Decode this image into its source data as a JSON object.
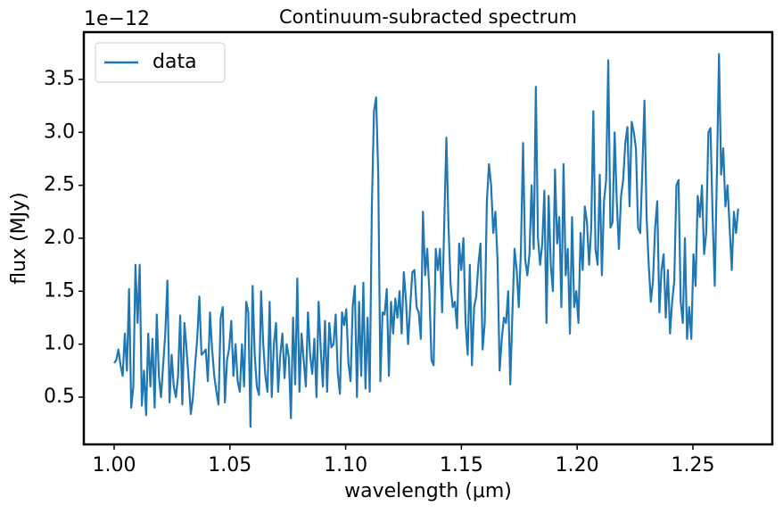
{
  "chart_data": {
    "type": "line",
    "title": "Continuum-subracted spectrum",
    "x_label": "wavelength (μm)",
    "y_label": "flux (MJy)",
    "y_offset_text": "1e−12",
    "legend_position": "upper left",
    "grid": false,
    "xlim": [
      0.9869,
      1.2843
    ],
    "ylim": [
      0.0534,
      3.9466
    ],
    "xticks": [
      {
        "value": 1,
        "label": "1.00"
      },
      1.05,
      {
        "value": 1.1,
        "label": "1.10"
      },
      1.15,
      {
        "value": 1.2,
        "label": "1.20"
      },
      1.25
    ],
    "yticks": [
      0.5,
      {
        "value": 1,
        "label": "1.0"
      },
      1.5,
      {
        "value": 2,
        "label": "2.0"
      },
      2.5,
      {
        "value": 3,
        "label": "3.0"
      },
      3.5
    ],
    "x": [
      1,
      1.00092,
      1.00184,
      1.00276,
      1.00368,
      1.0046,
      1.00552,
      1.00644,
      1.00736,
      1.00828,
      1.0092,
      1.01012,
      1.01104,
      1.01196,
      1.01288,
      1.0138,
      1.01472,
      1.01564,
      1.01656,
      1.01748,
      1.0184,
      1.01932,
      1.02024,
      1.02116,
      1.02208,
      1.023,
      1.02392,
      1.02484,
      1.02576,
      1.02668,
      1.0276,
      1.02852,
      1.02944,
      1.03036,
      1.03128,
      1.0322,
      1.03312,
      1.03404,
      1.03496,
      1.03588,
      1.0368,
      1.03772,
      1.03864,
      1.03956,
      1.04048,
      1.0414,
      1.04232,
      1.04324,
      1.04416,
      1.04508,
      1.046,
      1.04692,
      1.04784,
      1.04876,
      1.04968,
      1.0506,
      1.05152,
      1.05244,
      1.05336,
      1.05428,
      1.0552,
      1.05612,
      1.05704,
      1.05796,
      1.05888,
      1.0598,
      1.06072,
      1.06164,
      1.06256,
      1.06348,
      1.0644,
      1.06532,
      1.06624,
      1.06716,
      1.06808,
      1.069,
      1.06992,
      1.07084,
      1.07176,
      1.07268,
      1.0736,
      1.07452,
      1.07544,
      1.07636,
      1.07728,
      1.0782,
      1.07912,
      1.08004,
      1.08096,
      1.08188,
      1.0828,
      1.08372,
      1.08464,
      1.08556,
      1.08648,
      1.0874,
      1.08832,
      1.08924,
      1.09016,
      1.09108,
      1.092,
      1.09292,
      1.09384,
      1.09476,
      1.09568,
      1.0966,
      1.09752,
      1.09844,
      1.09936,
      1.10028,
      1.1012,
      1.10212,
      1.10304,
      1.10396,
      1.10488,
      1.1058,
      1.10672,
      1.10764,
      1.10856,
      1.10948,
      1.1104,
      1.11132,
      1.11224,
      1.11316,
      1.11408,
      1.115,
      1.11592,
      1.11684,
      1.11776,
      1.11868,
      1.1196,
      1.12052,
      1.12144,
      1.12236,
      1.12328,
      1.1242,
      1.12512,
      1.12604,
      1.12696,
      1.12788,
      1.1288,
      1.12972,
      1.13064,
      1.13156,
      1.13248,
      1.1334,
      1.13432,
      1.13524,
      1.13616,
      1.13708,
      1.138,
      1.13892,
      1.13984,
      1.14076,
      1.14168,
      1.1426,
      1.14352,
      1.14444,
      1.14536,
      1.14628,
      1.1472,
      1.14812,
      1.14904,
      1.14996,
      1.15088,
      1.1518,
      1.15272,
      1.15364,
      1.15456,
      1.15548,
      1.1564,
      1.15732,
      1.15824,
      1.15916,
      1.16008,
      1.161,
      1.16192,
      1.16284,
      1.16376,
      1.16468,
      1.1656,
      1.16652,
      1.16744,
      1.16836,
      1.16928,
      1.1702,
      1.17112,
      1.17204,
      1.17296,
      1.17388,
      1.1748,
      1.17572,
      1.17664,
      1.17756,
      1.17848,
      1.1794,
      1.18032,
      1.18124,
      1.18216,
      1.18308,
      1.184,
      1.18492,
      1.18584,
      1.18676,
      1.18768,
      1.1886,
      1.18952,
      1.19044,
      1.19136,
      1.19228,
      1.1932,
      1.19412,
      1.19504,
      1.19596,
      1.19688,
      1.1978,
      1.19872,
      1.19964,
      1.20056,
      1.20148,
      1.2024,
      1.20332,
      1.20424,
      1.20516,
      1.20608,
      1.207,
      1.20792,
      1.20884,
      1.20976,
      1.21068,
      1.2116,
      1.21252,
      1.21344,
      1.21436,
      1.21528,
      1.2162,
      1.21712,
      1.21804,
      1.21896,
      1.21988,
      1.2208,
      1.22172,
      1.22264,
      1.22356,
      1.22448,
      1.2254,
      1.22632,
      1.22724,
      1.22816,
      1.22908,
      1.23,
      1.23092,
      1.23184,
      1.23276,
      1.23368,
      1.2346,
      1.23552,
      1.23644,
      1.23736,
      1.23828,
      1.2392,
      1.24012,
      1.24104,
      1.24196,
      1.24288,
      1.2438,
      1.24472,
      1.24564,
      1.24656,
      1.24748,
      1.2484,
      1.24932,
      1.25024,
      1.25116,
      1.25208,
      1.253,
      1.25392,
      1.25484,
      1.25576,
      1.25668,
      1.2576,
      1.25852,
      1.25944,
      1.26036,
      1.26128,
      1.2622,
      1.26312,
      1.26404,
      1.26496,
      1.26588,
      1.2668,
      1.26772,
      1.26864,
      1.26956
    ],
    "series": [
      {
        "name": "data",
        "color": "#1f77b4",
        "values": [
          0.82,
          0.85,
          0.95,
          0.8,
          0.7,
          1.1,
          0.75,
          1.52,
          0.4,
          0.6,
          1.75,
          1.2,
          1.75,
          0.42,
          0.75,
          0.33,
          1.1,
          0.6,
          1.05,
          0.4,
          1.28,
          0.7,
          0.5,
          0.8,
          1.1,
          1.6,
          0.45,
          0.9,
          0.6,
          0.5,
          0.7,
          1.27,
          0.43,
          1.2,
          0.95,
          0.66,
          0.34,
          0.5,
          0.8,
          1.05,
          1.45,
          0.9,
          0.92,
          0.95,
          0.65,
          1.3,
          0.95,
          0.7,
          0.55,
          0.43,
          1.25,
          1.35,
          0.45,
          0.85,
          0.96,
          1.22,
          0.7,
          1.0,
          0.65,
          0.55,
          1.0,
          0.6,
          1.4,
          1.3,
          0.22,
          1.55,
          0.9,
          0.6,
          0.52,
          1.5,
          1.0,
          0.7,
          0.55,
          1.4,
          0.5,
          1.0,
          1.2,
          0.55,
          0.9,
          1.1,
          0.68,
          1.0,
          0.88,
          0.3,
          1.25,
          0.62,
          1.62,
          0.55,
          1.1,
          0.85,
          0.6,
          1.3,
          0.9,
          0.72,
          1.05,
          0.5,
          1.4,
          0.95,
          0.6,
          1.22,
          0.55,
          1.2,
          0.97,
          1.0,
          1.28,
          0.73,
          0.53,
          1.3,
          1.18,
          1.33,
          0.82,
          0.65,
          1.35,
          1.55,
          0.5,
          1.4,
          0.7,
          1.58,
          0.58,
          1.25,
          0.55,
          2.3,
          3.2,
          3.33,
          2.6,
          0.65,
          1.3,
          1.28,
          1.52,
          0.7,
          1.4,
          1.1,
          1.43,
          1.25,
          1.5,
          1.1,
          1.68,
          1.42,
          1.0,
          1.35,
          1.68,
          1.7,
          1.35,
          1.3,
          1.05,
          2.25,
          1.65,
          1.9,
          1.5,
          0.85,
          0.8,
          1.9,
          1.7,
          1.9,
          1.3,
          2.15,
          2.95,
          2.1,
          1.55,
          1.35,
          1.4,
          1.15,
          1.95,
          1.7,
          2.0,
          1.2,
          0.9,
          1.75,
          0.8,
          1.35,
          1.45,
          1.75,
          1.95,
          0.95,
          1.2,
          2.35,
          2.7,
          2.5,
          2.05,
          2.25,
          1.8,
          0.75,
          1.05,
          1.25,
          1.2,
          1.5,
          0.62,
          1.3,
          1.9,
          1.7,
          1.35,
          1.9,
          2.9,
          1.8,
          1.65,
          1.85,
          2.5,
          1.9,
          3.43,
          2.0,
          1.75,
          1.95,
          2.45,
          1.2,
          2.4,
          1.75,
          1.5,
          2.65,
          1.95,
          2.2,
          1.35,
          2.7,
          1.65,
          1.9,
          1.1,
          2.2,
          1.35,
          1.5,
          1.2,
          2.05,
          1.7,
          2.3,
          2.15,
          1.75,
          2.1,
          3.2,
          1.9,
          1.75,
          2.6,
          1.65,
          2.35,
          2.55,
          3.68,
          2.1,
          2.15,
          3.0,
          2.35,
          1.9,
          2.4,
          2.55,
          2.9,
          3.05,
          2.3,
          3.1,
          3.0,
          2.85,
          2.1,
          2.05,
          2.65,
          3.3,
          2.2,
          1.75,
          1.4,
          1.6,
          2.1,
          2.35,
          1.3,
          1.7,
          1.85,
          1.25,
          1.7,
          1.1,
          1.4,
          1.6,
          2.5,
          2.55,
          1.4,
          1.2,
          2.0,
          1.05,
          1.35,
          1.05,
          1.85,
          1.55,
          2.4,
          2.2,
          2.5,
          1.85,
          2.05,
          3.0,
          3.04,
          2.2,
          1.55,
          2.6,
          3.74,
          2.6,
          2.85,
          2.3,
          2.5,
          2.1,
          1.7,
          2.25,
          2.05,
          2.28
        ]
      }
    ]
  }
}
